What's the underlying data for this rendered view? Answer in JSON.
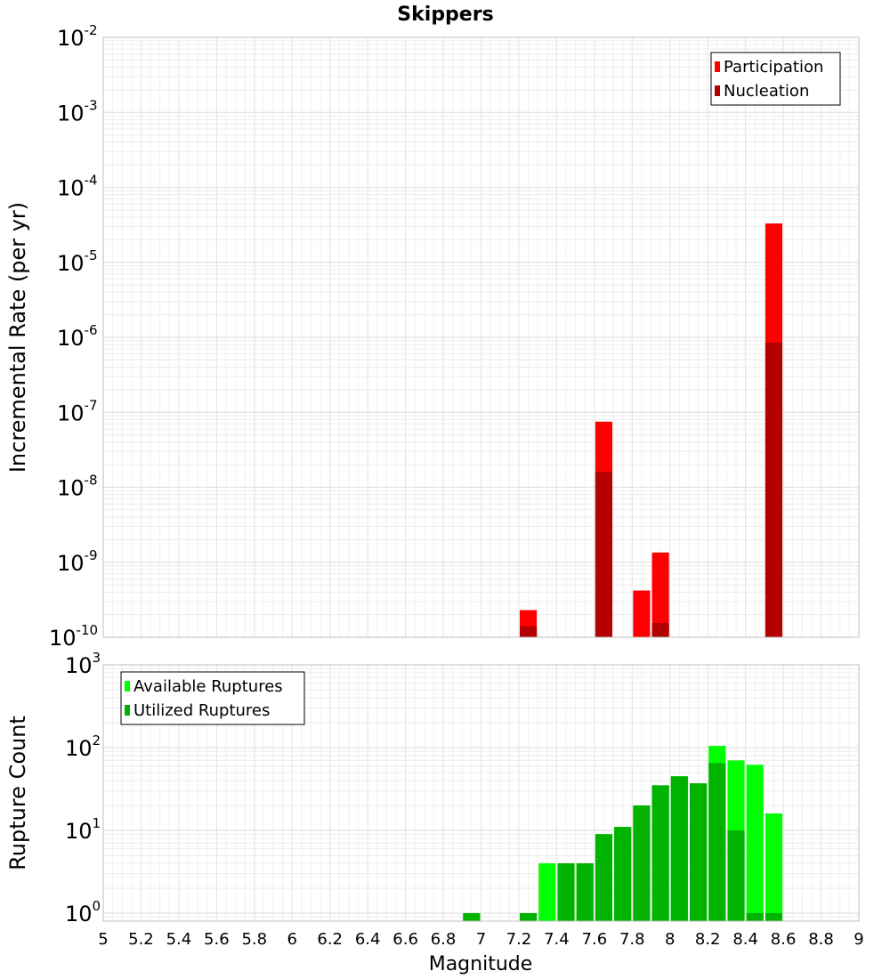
{
  "chart_data": [
    {
      "type": "bar",
      "title": "Skippers",
      "xlabel": "",
      "ylabel": "Incremental Rate (per yr)",
      "yscale": "log",
      "xlim": [
        5,
        9
      ],
      "ylim": [
        1e-10,
        0.01
      ],
      "grid": true,
      "legend_position": "top-right",
      "y_tick_labels": [
        {
          "base": "10",
          "exp": "-2"
        },
        {
          "base": "10",
          "exp": "-3"
        },
        {
          "base": "10",
          "exp": "-4"
        },
        {
          "base": "10",
          "exp": "-5"
        },
        {
          "base": "10",
          "exp": "-6"
        },
        {
          "base": "10",
          "exp": "-7"
        },
        {
          "base": "10",
          "exp": "-8"
        },
        {
          "base": "10",
          "exp": "-9"
        },
        {
          "base": "10",
          "exp": "-10"
        }
      ],
      "series": [
        {
          "name": "Participation",
          "color": "#ff0000",
          "points": [
            [
              7.25,
              2.3e-10
            ],
            [
              7.65,
              7.5e-08
            ],
            [
              7.85,
              4.2e-10
            ],
            [
              7.95,
              1.35e-09
            ],
            [
              8.55,
              3.3e-05
            ]
          ]
        },
        {
          "name": "Nucleation",
          "color": "#b30000",
          "points": [
            [
              7.25,
              1.4e-10
            ],
            [
              7.65,
              1.6e-08
            ],
            [
              7.95,
              1.55e-10
            ],
            [
              8.55,
              8.5e-07
            ]
          ]
        }
      ]
    },
    {
      "type": "bar",
      "title": "",
      "xlabel": "Magnitude",
      "ylabel": "Rupture Count",
      "yscale": "log",
      "xlim": [
        5,
        9
      ],
      "ylim": [
        0.8,
        1000
      ],
      "grid": true,
      "legend_position": "top-left",
      "x_tick_labels": [
        "5",
        "5.2",
        "5.4",
        "5.6",
        "5.8",
        "6",
        "6.2",
        "6.4",
        "6.6",
        "6.8",
        "7",
        "7.2",
        "7.4",
        "7.6",
        "7.8",
        "8",
        "8.2",
        "8.4",
        "8.6",
        "8.8",
        "9"
      ],
      "y_tick_labels": [
        {
          "base": "10",
          "exp": "3"
        },
        {
          "base": "10",
          "exp": "2"
        },
        {
          "base": "10",
          "exp": "1"
        },
        {
          "base": "10",
          "exp": "0"
        }
      ],
      "series": [
        {
          "name": "Available Ruptures",
          "color": "#00ff00",
          "points": [
            [
              6.95,
              1
            ],
            [
              7.25,
              1
            ],
            [
              7.35,
              4
            ],
            [
              7.45,
              4
            ],
            [
              7.55,
              4
            ],
            [
              7.65,
              9
            ],
            [
              7.75,
              11
            ],
            [
              7.85,
              20
            ],
            [
              7.95,
              35
            ],
            [
              8.05,
              45
            ],
            [
              8.15,
              37
            ],
            [
              8.25,
              105
            ],
            [
              8.35,
              70
            ],
            [
              8.45,
              62
            ],
            [
              8.55,
              16
            ]
          ]
        },
        {
          "name": "Utilized Ruptures",
          "color": "#00b300",
          "points": [
            [
              6.95,
              1
            ],
            [
              7.25,
              1
            ],
            [
              7.45,
              4
            ],
            [
              7.55,
              4
            ],
            [
              7.65,
              9
            ],
            [
              7.75,
              11
            ],
            [
              7.85,
              20
            ],
            [
              7.95,
              35
            ],
            [
              8.05,
              45
            ],
            [
              8.15,
              37
            ],
            [
              8.25,
              65
            ],
            [
              8.35,
              10
            ],
            [
              8.45,
              1
            ],
            [
              8.55,
              1
            ]
          ]
        }
      ]
    }
  ]
}
